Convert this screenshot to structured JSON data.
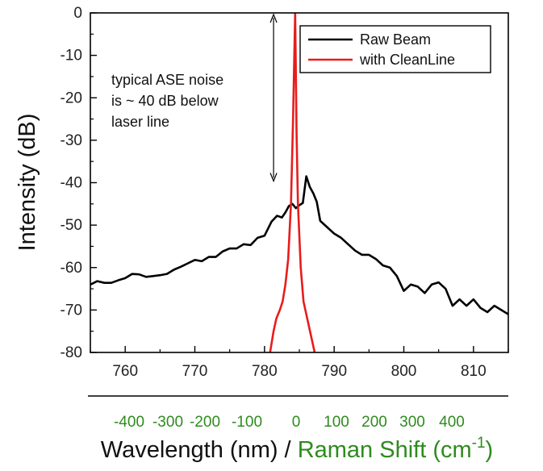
{
  "chart_data": {
    "type": "line",
    "xlim": [
      755,
      815
    ],
    "ylim": [
      -80,
      0
    ],
    "x_ticks": [
      760,
      770,
      780,
      790,
      800,
      810
    ],
    "y_ticks": [
      0,
      -10,
      -20,
      -30,
      -40,
      -50,
      -60,
      -70,
      -80
    ],
    "ylabel": "Intensity (dB)",
    "xlabel_part1": "Wavelength (nm) / ",
    "xlabel_part2": "Raman Shift (cm",
    "xlabel_sup": "-1",
    "xlabel_close": ")",
    "secondary_axis": {
      "ticks": [
        "-400",
        "-300",
        "-200",
        "-100",
        "0",
        "100",
        "200",
        "300",
        "400"
      ],
      "color": "#2e8b1e"
    },
    "legend": {
      "position": "top-right"
    },
    "annotation": {
      "lines": [
        "typical ASE noise",
        "is ~ 40 dB below",
        "laser line"
      ],
      "arrow_x": 781.3,
      "arrow_from": 0,
      "arrow_to": -40
    },
    "series": [
      {
        "name": "Raw Beam",
        "color": "#000000",
        "x": [
          755,
          756,
          757,
          758,
          759,
          760,
          761,
          762,
          763,
          764,
          765,
          766,
          767,
          768,
          769,
          770,
          771,
          772,
          773,
          774,
          775,
          776,
          777,
          778,
          779,
          780,
          781,
          781.8,
          782.5,
          783,
          783.5,
          784,
          784.5,
          785,
          785.5,
          786,
          786.5,
          787,
          787.5,
          788,
          789,
          790,
          791,
          792,
          793,
          794,
          795,
          796,
          797,
          798,
          799,
          800,
          801,
          802,
          803,
          804,
          805,
          806,
          807,
          808,
          809,
          810,
          811,
          812,
          813,
          814,
          815
        ],
        "y": [
          -64,
          -63.2,
          -63.6,
          -63.6,
          -63,
          -62.5,
          -61.5,
          -61.6,
          -62.2,
          -62,
          -61.8,
          -61.5,
          -60.5,
          -59.8,
          -59,
          -58.2,
          -58.5,
          -57.5,
          -57.5,
          -56.2,
          -55.5,
          -55.5,
          -54.5,
          -54.7,
          -53,
          -52.5,
          -49.2,
          -47.8,
          -48.2,
          -47,
          -45.5,
          -45,
          -46,
          -45.3,
          -44.8,
          -38.5,
          -41,
          -42.5,
          -44.5,
          -49,
          -50.5,
          -52,
          -53,
          -54.5,
          -56,
          -57,
          -57,
          -58,
          -59.5,
          -60,
          -62,
          -65.5,
          -64,
          -64.5,
          -66,
          -64,
          -63.5,
          -65,
          -69,
          -67.5,
          -69,
          -67.5,
          -69.5,
          -70.5,
          -69,
          -70,
          -71
        ],
        "show_in_legend": true
      },
      {
        "name": "with CleanLine",
        "color": "#e81c1c",
        "x": [
          780.8,
          781.3,
          781.7,
          782.2,
          782.6,
          783,
          783.4,
          783.8,
          784.1,
          784.4,
          784.6,
          784.8,
          785.2,
          785.6,
          786,
          786.4,
          786.8,
          787.2
        ],
        "y": [
          -80,
          -75,
          -72,
          -70,
          -68,
          -64,
          -58,
          -45,
          -25,
          0,
          -28,
          -45,
          -60,
          -68,
          -71,
          -74,
          -77,
          -80
        ],
        "show_in_legend": true
      }
    ]
  }
}
